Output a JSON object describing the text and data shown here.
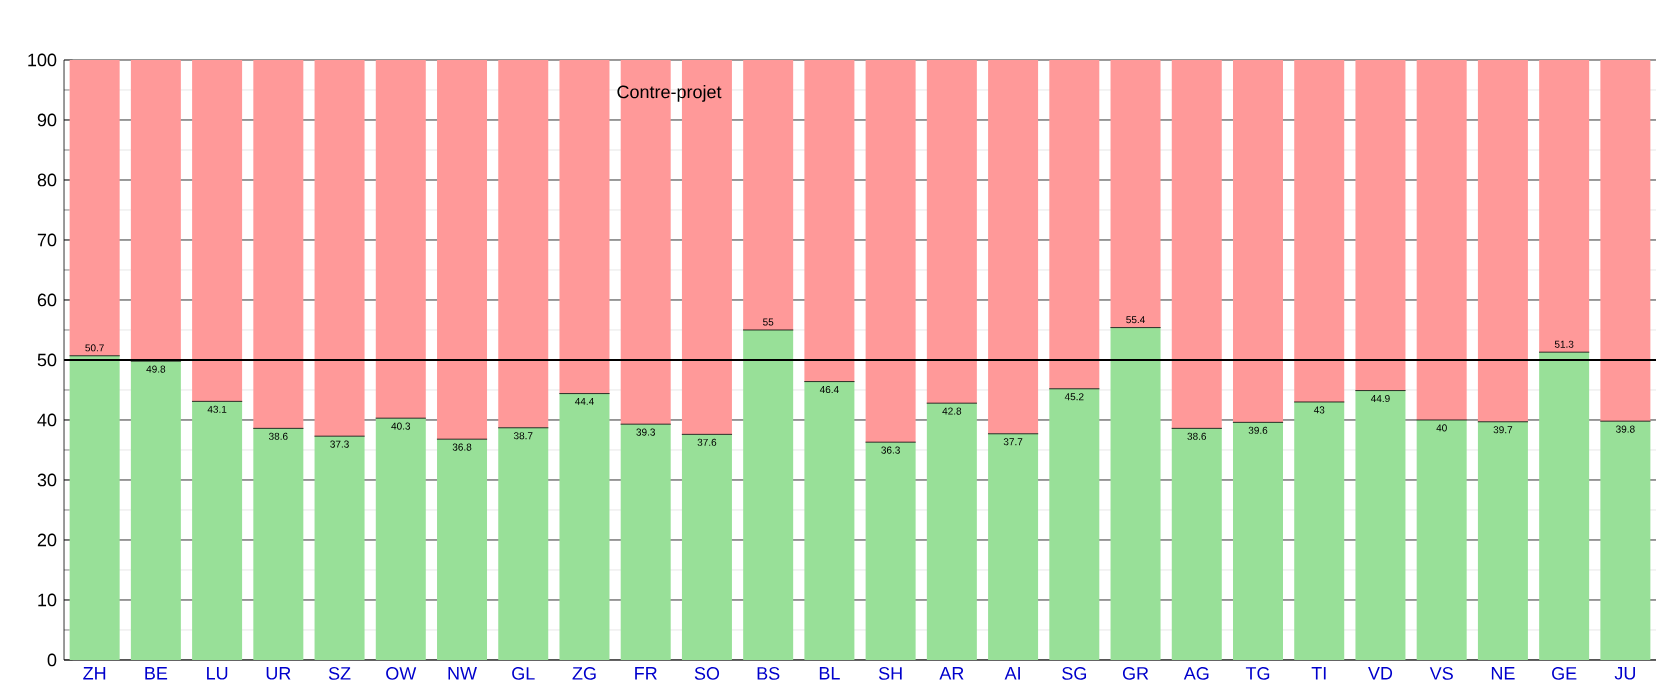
{
  "chart_data": {
    "type": "bar",
    "title": "Contre-projet",
    "stacked": true,
    "categories": [
      "ZH",
      "BE",
      "LU",
      "UR",
      "SZ",
      "OW",
      "NW",
      "GL",
      "ZG",
      "FR",
      "SO",
      "BS",
      "BL",
      "SH",
      "AR",
      "AI",
      "SG",
      "GR",
      "AG",
      "TG",
      "TI",
      "VD",
      "VS",
      "NE",
      "GE",
      "JU"
    ],
    "series": [
      {
        "color": "#98e098",
        "values": [
          50.7,
          49.8,
          43.1,
          38.6,
          37.3,
          40.3,
          36.8,
          38.7,
          44.4,
          39.3,
          37.6,
          55,
          46.4,
          36.3,
          42.8,
          37.7,
          45.2,
          55.4,
          38.6,
          39.6,
          43,
          44.9,
          40,
          39.7,
          51.3,
          39.8
        ],
        "value_labels": [
          "50.7",
          "49.8",
          "43.1",
          "38.6",
          "37.3",
          "40.3",
          "36.8",
          "38.7",
          "44.4",
          "39.3",
          "37.6",
          "55",
          "46.4",
          "36.3",
          "42.8",
          "37.7",
          "45.2",
          "55.4",
          "38.6",
          "39.6",
          "43",
          "44.9",
          "40",
          "39.7",
          "51.3",
          "39.8"
        ]
      },
      {
        "color": "#ff9999",
        "values": [
          49.3,
          50.2,
          56.9,
          61.4,
          62.7,
          59.7,
          63.2,
          61.3,
          55.6,
          60.7,
          62.4,
          45,
          53.6,
          63.7,
          57.2,
          62.3,
          54.8,
          44.6,
          61.4,
          60.4,
          57,
          55.1,
          60,
          60.3,
          48.7,
          60.2
        ]
      }
    ],
    "ylim": [
      0,
      100
    ],
    "yticks": [
      0,
      10,
      20,
      30,
      40,
      50,
      60,
      70,
      80,
      90,
      100
    ],
    "grid": "y",
    "ref_lines": [
      {
        "axis": "y",
        "value": 50,
        "color": "#000000"
      }
    ]
  }
}
